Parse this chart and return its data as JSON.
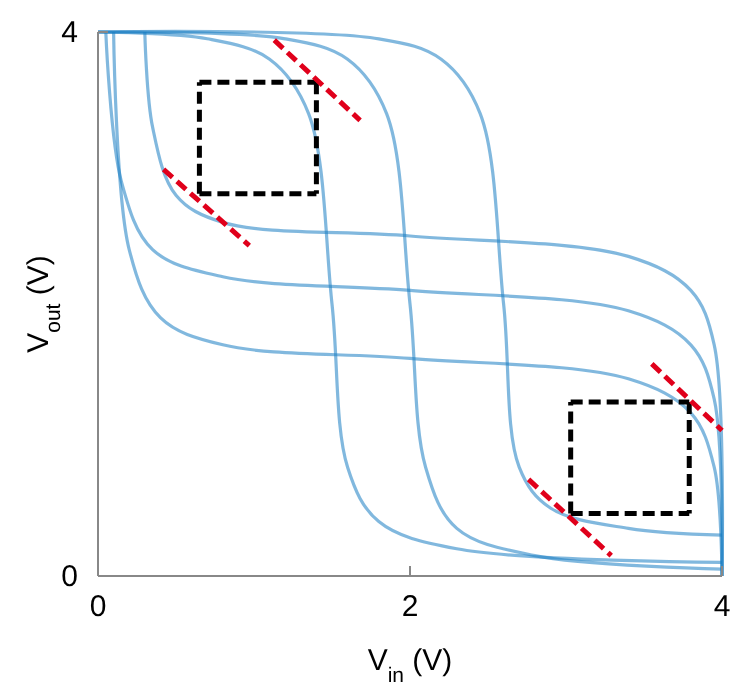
{
  "chart_data": {
    "type": "line",
    "xlabel": "V$_{in}$ (V)",
    "ylabel": "V$_{out}$ (V)",
    "xlim": [
      0,
      4
    ],
    "ylim": [
      0,
      4
    ],
    "xticks": [
      0,
      2,
      4
    ],
    "yticks": [
      0,
      4
    ],
    "marker": "none",
    "line_style": "solid",
    "series": [
      {
        "color": "#1a7ec2",
        "x": [
          0,
          0.7,
          1.1,
          1.35,
          1.5,
          1.6,
          1.8,
          2.3,
          4
        ],
        "values": [
          4,
          3.95,
          3.8,
          3.4,
          2,
          0.8,
          0.4,
          0.2,
          0.1
        ]
      },
      {
        "color": "#1a7ec2",
        "x": [
          0,
          1.2,
          1.6,
          1.85,
          2,
          2.1,
          2.3,
          2.8,
          4
        ],
        "values": [
          4,
          3.95,
          3.8,
          3.4,
          2,
          0.8,
          0.35,
          0.15,
          0.05
        ]
      },
      {
        "color": "#1a7ec2",
        "x": [
          0,
          1.8,
          2.2,
          2.45,
          2.6,
          2.7,
          2.9,
          3.4,
          4
        ],
        "values": [
          4,
          3.95,
          3.8,
          3.4,
          2,
          0.8,
          0.5,
          0.35,
          0.3
        ]
      },
      {
        "color": "#1a7ec2",
        "x": [
          4,
          3.95,
          3.8,
          3.4,
          2,
          0.8,
          0.4,
          0.2,
          0.1
        ],
        "values": [
          0,
          0.8,
          1.2,
          1.45,
          1.6,
          1.7,
          1.9,
          2.4,
          4
        ]
      },
      {
        "color": "#1a7ec2",
        "x": [
          4,
          3.95,
          3.8,
          3.4,
          2,
          0.8,
          0.35,
          0.15,
          0.05
        ],
        "values": [
          0,
          1.3,
          1.7,
          1.95,
          2.1,
          2.2,
          2.4,
          2.9,
          4
        ]
      },
      {
        "color": "#1a7ec2",
        "x": [
          4,
          3.95,
          3.8,
          3.4,
          2,
          0.8,
          0.5,
          0.35,
          0.3
        ],
        "values": [
          0,
          1.7,
          2.1,
          2.35,
          2.5,
          2.6,
          2.8,
          3.3,
          4
        ]
      },
      {
        "color": "#000000",
        "line_style": "dashed",
        "x": [
          0.65,
          0.65,
          1.4,
          1.4
        ],
        "values": [
          2.81,
          3.63,
          3.63,
          2.81
        ]
      },
      {
        "color": "#000000",
        "line_style": "dashed",
        "x": [
          0.65,
          1.4
        ],
        "values": [
          2.81,
          2.81
        ]
      },
      {
        "color": "#000000",
        "line_style": "dashed",
        "x": [
          3.03,
          3.03,
          3.79,
          3.79
        ],
        "values": [
          0.46,
          1.28,
          1.28,
          0.46
        ]
      },
      {
        "color": "#000000",
        "line_style": "dashed",
        "x": [
          3.03,
          3.79
        ],
        "values": [
          0.46,
          0.46
        ]
      },
      {
        "color": "#e0001b",
        "line_style": "dashed",
        "x": [
          1.13,
          1.68
        ],
        "values": [
          3.94,
          3.35
        ]
      },
      {
        "color": "#e0001b",
        "line_style": "dashed",
        "x": [
          0.42,
          0.97
        ],
        "values": [
          2.99,
          2.43
        ]
      },
      {
        "color": "#e0001b",
        "line_style": "dashed",
        "x": [
          3.55,
          4
        ],
        "values": [
          1.56,
          1.07
        ]
      },
      {
        "color": "#e0001b",
        "line_style": "dashed",
        "x": [
          2.76,
          3.29
        ],
        "values": [
          0.71,
          0.15
        ]
      }
    ]
  }
}
